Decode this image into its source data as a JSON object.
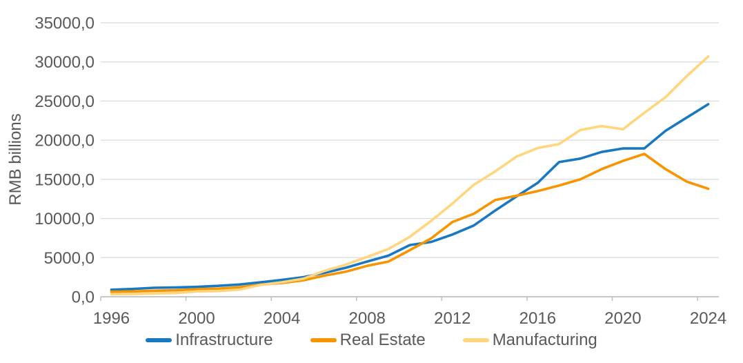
{
  "page": {
    "background_color": "#ffffff",
    "text_color": "#595959"
  },
  "chart_data": {
    "type": "line",
    "title": "",
    "xlabel": "",
    "ylabel": "RMB billions",
    "ylim": [
      0,
      35000
    ],
    "grid": true,
    "legend_position": "bottom",
    "grid_color": "#d9d9d9",
    "axis_color": "#bfbfbf",
    "text_color": "#595959",
    "x": [
      1996,
      1997,
      1998,
      1999,
      2000,
      2001,
      2002,
      2003,
      2004,
      2005,
      2006,
      2007,
      2008,
      2009,
      2010,
      2011,
      2012,
      2013,
      2014,
      2015,
      2016,
      2017,
      2018,
      2019,
      2020,
      2021,
      2022,
      2023,
      2024
    ],
    "x_tick_years": [
      1996,
      2000,
      2004,
      2008,
      2012,
      2016,
      2020,
      2024
    ],
    "x_tick_labels": [
      "1996",
      "2000",
      "2004",
      "2008",
      "2012",
      "2016",
      "2020",
      "2024"
    ],
    "y_ticks": [
      0,
      5000,
      10000,
      15000,
      20000,
      25000,
      30000,
      35000
    ],
    "y_tick_labels": [
      "0,0",
      "5000,0",
      "10000,0",
      "15000,0",
      "20000,0",
      "25000,0",
      "30000,0",
      "35000,0"
    ],
    "series": [
      {
        "name": "Infrastructure",
        "color": "#1878c2",
        "values": [
          900,
          1000,
          1150,
          1180,
          1260,
          1390,
          1560,
          1850,
          2150,
          2500,
          3050,
          3700,
          4500,
          5250,
          6600,
          7000,
          7950,
          9100,
          11000,
          12800,
          14550,
          17200,
          17650,
          18500,
          18950,
          18950,
          21200,
          22900,
          24600
        ]
      },
      {
        "name": "Real Estate",
        "color": "#f79500",
        "values": [
          640,
          680,
          770,
          820,
          970,
          1030,
          1210,
          1550,
          1750,
          2100,
          2700,
          3200,
          3950,
          4500,
          5950,
          7450,
          9550,
          10600,
          12350,
          12900,
          13500,
          14200,
          15000,
          16300,
          17350,
          18250,
          16300,
          14700,
          13800
        ]
      },
      {
        "name": "Manufacturing",
        "color": "#ffd57e",
        "values": [
          330,
          360,
          420,
          470,
          680,
          730,
          910,
          1500,
          1850,
          2300,
          3300,
          4100,
          5100,
          6100,
          7650,
          9700,
          11900,
          14300,
          16000,
          17900,
          19000,
          19500,
          21300,
          21800,
          21400,
          23500,
          25500,
          28200,
          30700
        ]
      }
    ]
  }
}
